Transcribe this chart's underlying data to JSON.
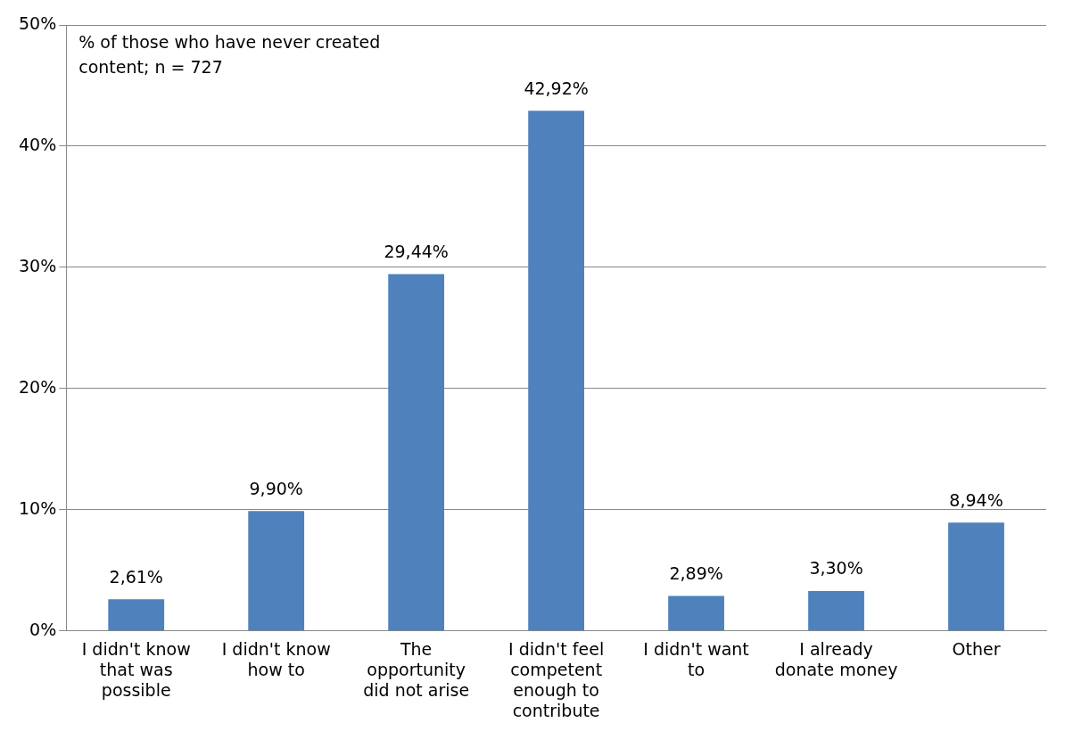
{
  "chart_data": {
    "type": "bar",
    "categories": [
      "I didn't know that was possible",
      "I didn't know how to",
      "The opportunity did not arise",
      "I didn't feel competent enough to contribute",
      "I didn't want to",
      "I already donate money",
      "Other"
    ],
    "values": [
      2.61,
      9.9,
      29.44,
      42.92,
      2.89,
      3.3,
      8.94
    ],
    "value_labels": [
      "2,61%",
      "9,90%",
      "29,44%",
      "42,92%",
      "2,89%",
      "3,30%",
      "8,94%"
    ],
    "color": "#4f81bd",
    "ylim": [
      0,
      50
    ],
    "yticks": [
      {
        "value": 0,
        "label": "0%"
      },
      {
        "value": 10,
        "label": "10%"
      },
      {
        "value": 20,
        "label": "20%"
      },
      {
        "value": 30,
        "label": "30%"
      },
      {
        "value": 40,
        "label": "40%"
      },
      {
        "value": 50,
        "label": "50%"
      }
    ],
    "grid": "y",
    "legend": false,
    "annotations": [
      "% of those who have never created content; n = 727"
    ]
  }
}
